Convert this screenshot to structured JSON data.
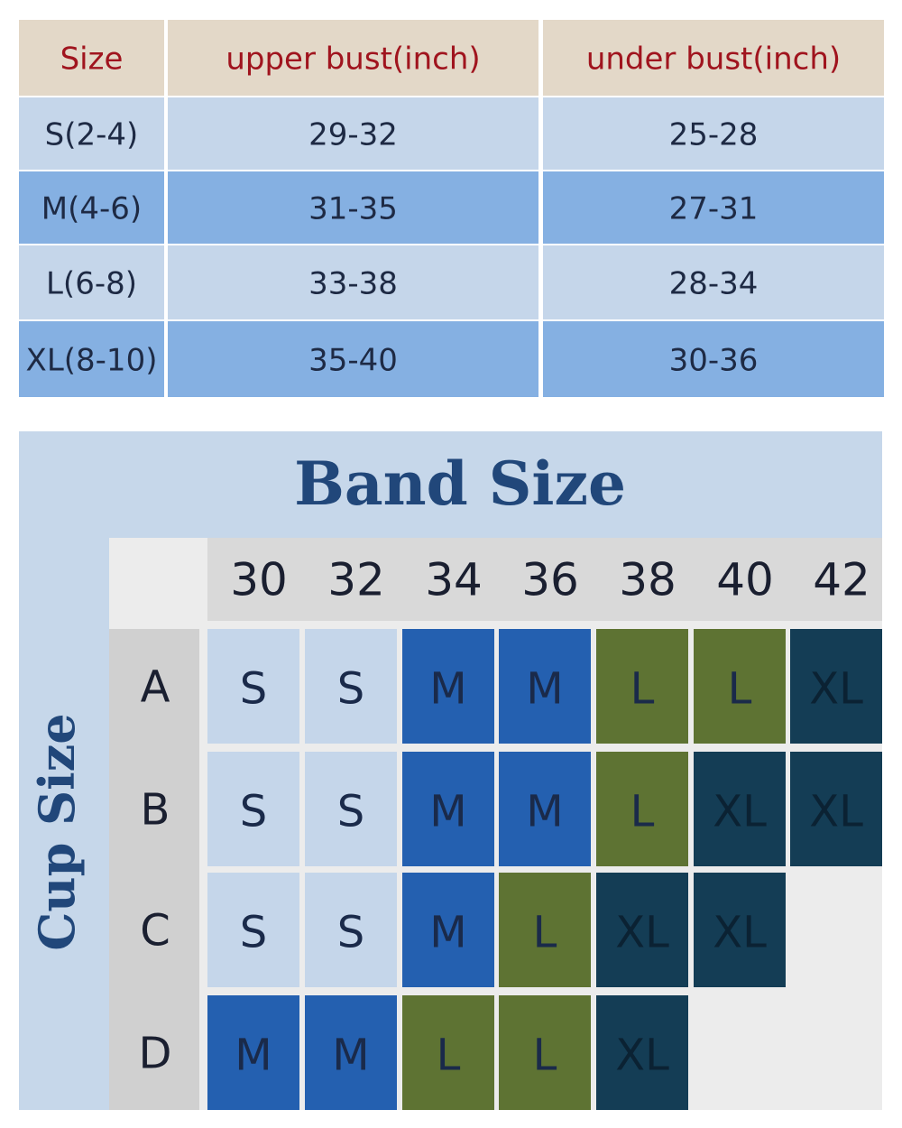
{
  "size_table": {
    "header": [
      "Size",
      "upper bust(inch)",
      "under bust(inch)"
    ],
    "rows": [
      [
        "S(2-4)",
        "29-32",
        "25-28"
      ],
      [
        "M(4-6)",
        "31-35",
        "27-31"
      ],
      [
        "L(6-8)",
        "33-38",
        "28-34"
      ],
      [
        "XL(8-10)",
        "35-40",
        "30-36"
      ]
    ]
  },
  "size_chart": {
    "title": "Band Size",
    "y_label": "Cup Size",
    "band_sizes": [
      "30",
      "32",
      "34",
      "36",
      "38",
      "40",
      "42"
    ],
    "cup_sizes": [
      "A",
      "B",
      "C",
      "D"
    ],
    "cells": [
      [
        "S",
        "S",
        "M",
        "M",
        "L",
        "L",
        "XL"
      ],
      [
        "S",
        "S",
        "M",
        "M",
        "L",
        "XL",
        "XL"
      ],
      [
        "S",
        "S",
        "M",
        "L",
        "XL",
        "XL"
      ],
      [
        "M",
        "M",
        "L",
        "L",
        "XL"
      ]
    ],
    "size_colors": {
      "S": "#c5d6ea",
      "M": "#2460b0",
      "L": "#5e7333",
      "XL": "#143d55"
    }
  }
}
